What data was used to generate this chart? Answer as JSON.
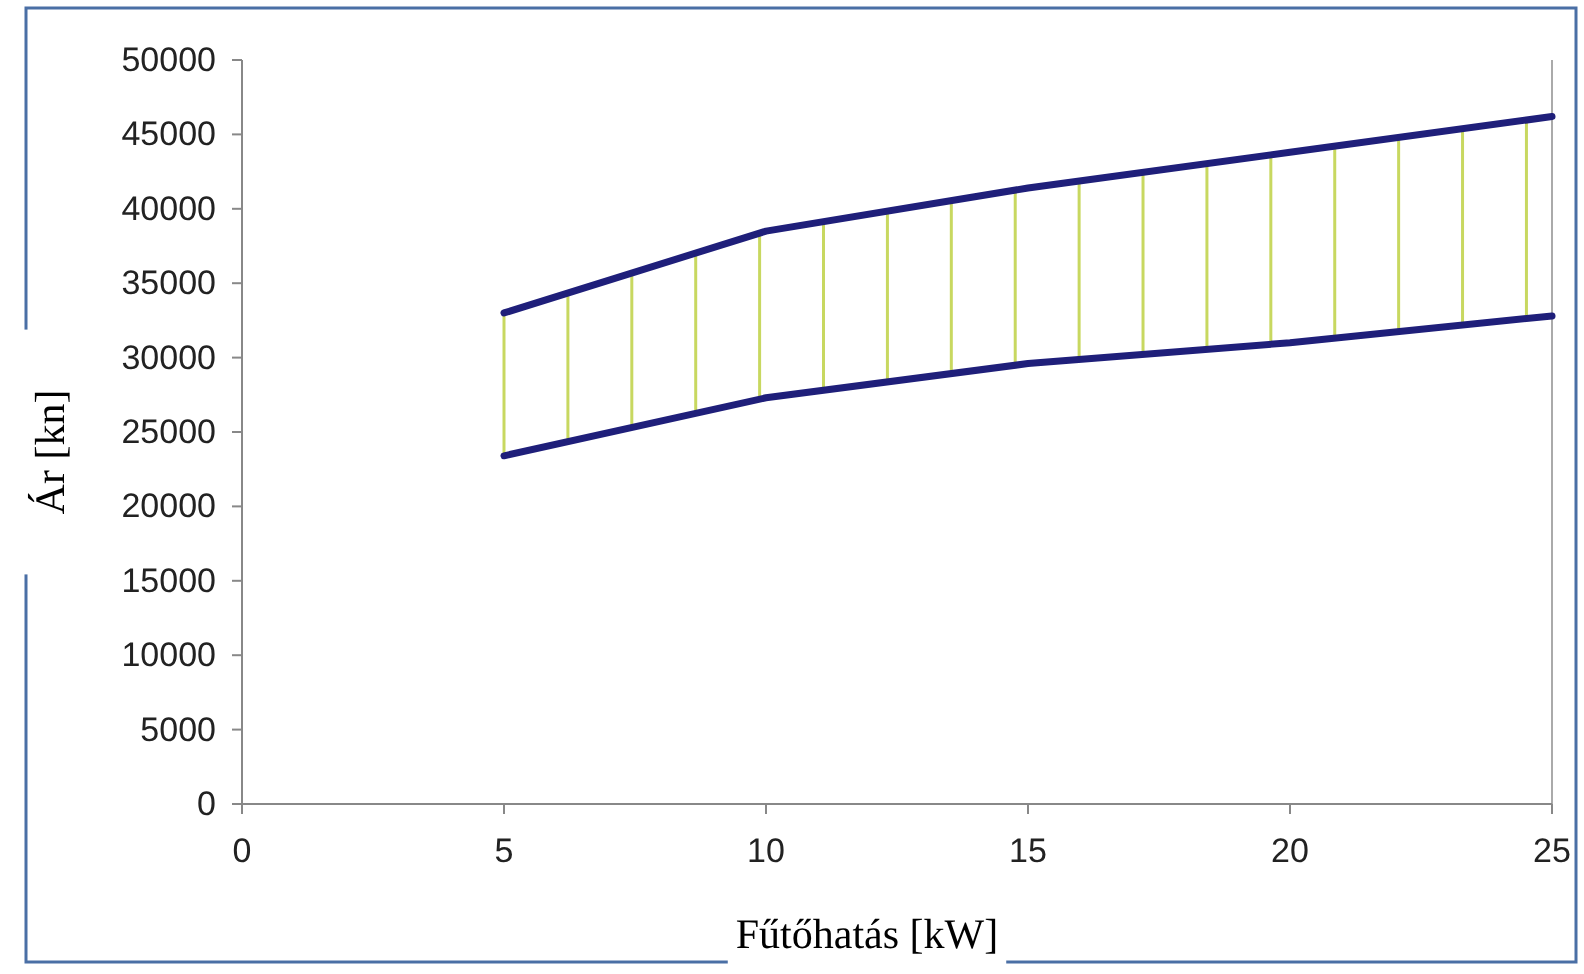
{
  "chart_data": {
    "type": "line",
    "xlabel": "Fűtőhatás [kW]",
    "ylabel": "Ár [kn]",
    "x": [
      5,
      10,
      15,
      20,
      25
    ],
    "series": [
      {
        "color": "#1f1f7a",
        "values": [
          33000,
          38500,
          41400,
          43800,
          46200
        ]
      },
      {
        "color": "#1f1f7a",
        "values": [
          23400,
          27300,
          29600,
          31000,
          32800
        ]
      }
    ],
    "xlim": [
      0,
      25
    ],
    "xticks": [
      0,
      5,
      10,
      15,
      20,
      25
    ],
    "ylim": [
      0,
      50000
    ],
    "yticks": [
      0,
      5000,
      10000,
      15000,
      20000,
      25000,
      30000,
      35000,
      40000,
      45000,
      50000
    ],
    "grid": false,
    "marker": "none",
    "line_style": "solid"
  }
}
